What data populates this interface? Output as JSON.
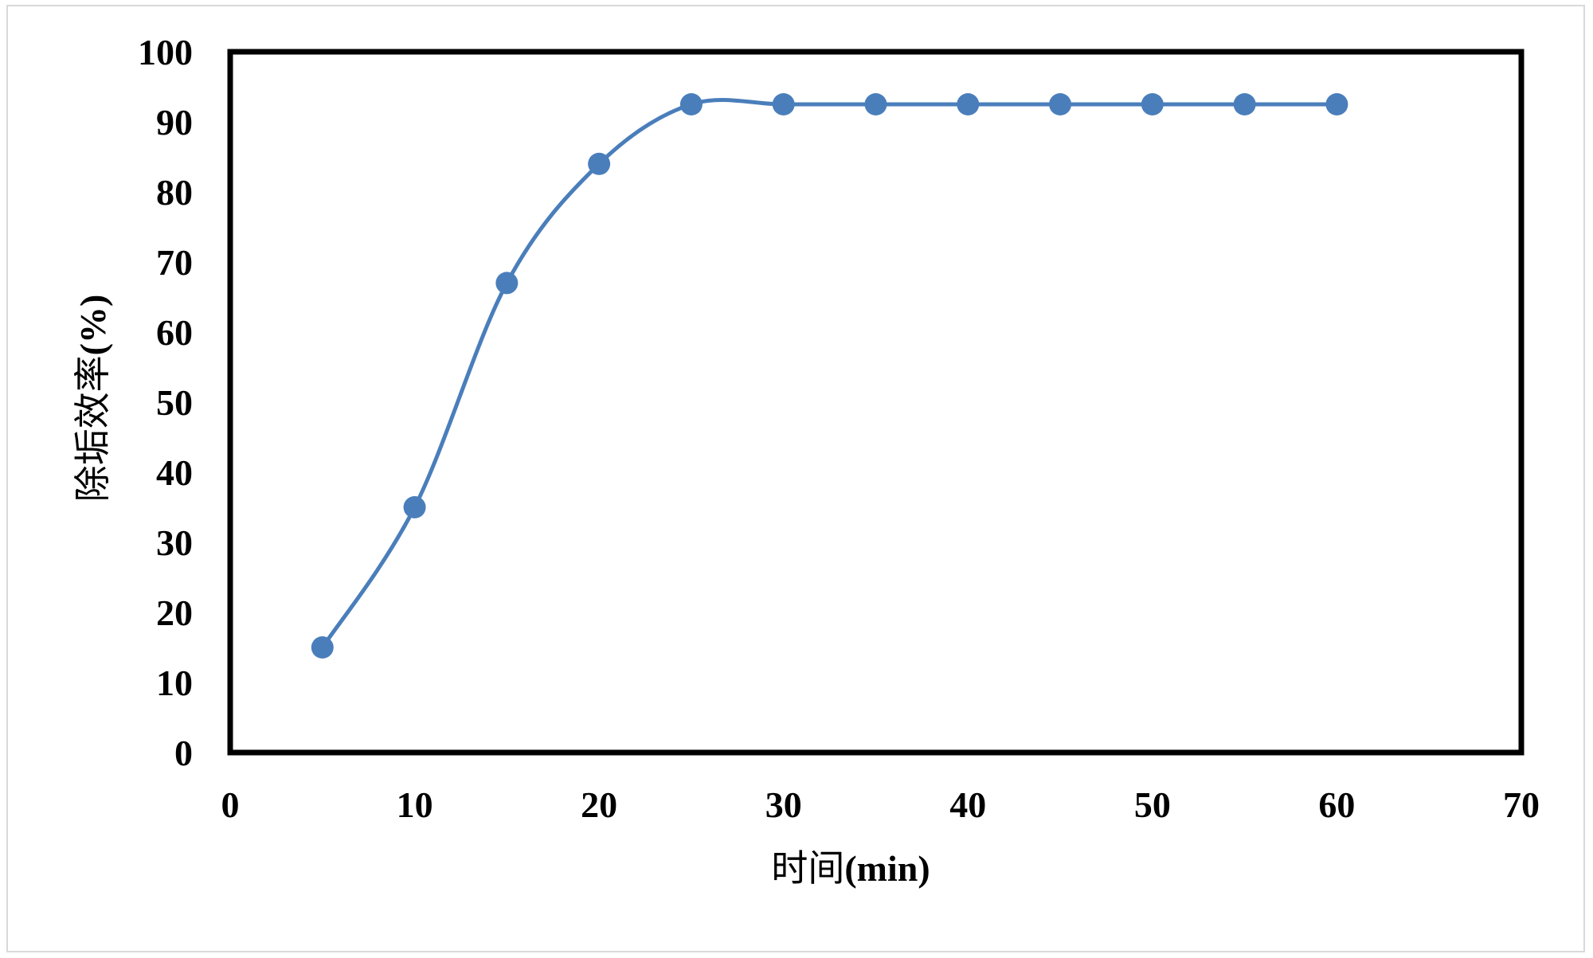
{
  "chart_data": {
    "type": "line",
    "smooth": true,
    "title": "",
    "xlabel": "时间",
    "xlabel_unit": "(min)",
    "ylabel": "除垢效率",
    "ylabel_unit": "(%)",
    "xlim": [
      0,
      70
    ],
    "ylim": [
      0,
      100
    ],
    "xticks": [
      0,
      10,
      20,
      30,
      40,
      50,
      60,
      70
    ],
    "yticks": [
      0,
      10,
      20,
      30,
      40,
      50,
      60,
      70,
      80,
      90,
      100
    ],
    "grid": false,
    "legend": "none",
    "colors": {
      "series": "#4a7ebb",
      "axis": "#000000",
      "frame": "#d9d9d9"
    },
    "series": [
      {
        "x": [
          5,
          10,
          15,
          20,
          25,
          30,
          35,
          40,
          45,
          50,
          55,
          60
        ],
        "y": [
          15,
          35,
          67,
          84,
          92.5,
          92.5,
          92.5,
          92.5,
          92.5,
          92.5,
          92.5,
          92.5
        ]
      }
    ]
  }
}
